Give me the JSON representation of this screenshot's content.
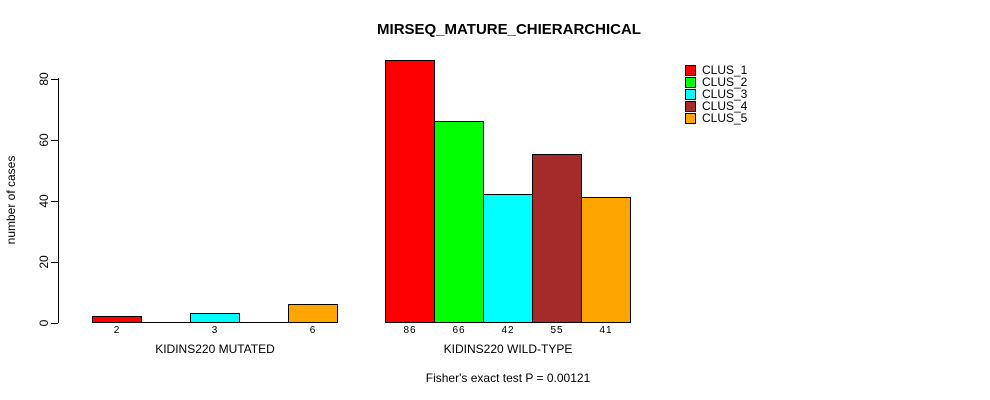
{
  "title": "MIRSEQ_MATURE_CHIERARCHICAL",
  "ylabel": "number of cases",
  "footer": "Fisher's exact test P = 0.00121",
  "legend": [
    {
      "label": "CLUS_1",
      "color": "#FF0000"
    },
    {
      "label": "CLUS_2",
      "color": "#00FF00"
    },
    {
      "label": "CLUS_3",
      "color": "#00FFFF"
    },
    {
      "label": "CLUS_4",
      "color": "#A52A2A"
    },
    {
      "label": "CLUS_5",
      "color": "#FFA500"
    }
  ],
  "chart_data": {
    "type": "bar",
    "title": "MIRSEQ_MATURE_CHIERARCHICAL",
    "ylabel": "number of cases",
    "xlabel": "",
    "yticks": [
      0,
      20,
      40,
      60,
      80
    ],
    "ylim": [
      0,
      86
    ],
    "grid": false,
    "legend_position": "top-right",
    "categories": [
      "CLUS_1",
      "CLUS_2",
      "CLUS_3",
      "CLUS_4",
      "CLUS_5"
    ],
    "colors": [
      "#FF0000",
      "#00FF00",
      "#00FFFF",
      "#A52A2A",
      "#FFA500"
    ],
    "groups": [
      {
        "label": "KIDINS220 MUTATED",
        "values": [
          2,
          0,
          3,
          0,
          6
        ],
        "bar_labels": [
          "2",
          "",
          "3",
          "",
          "6"
        ]
      },
      {
        "label": "KIDINS220 WILD-TYPE",
        "values": [
          86,
          66,
          42,
          55,
          41
        ],
        "bar_labels": [
          "86",
          "66",
          "42",
          "55",
          "41"
        ]
      }
    ],
    "annotation": "Fisher's exact test P = 0.00121"
  }
}
